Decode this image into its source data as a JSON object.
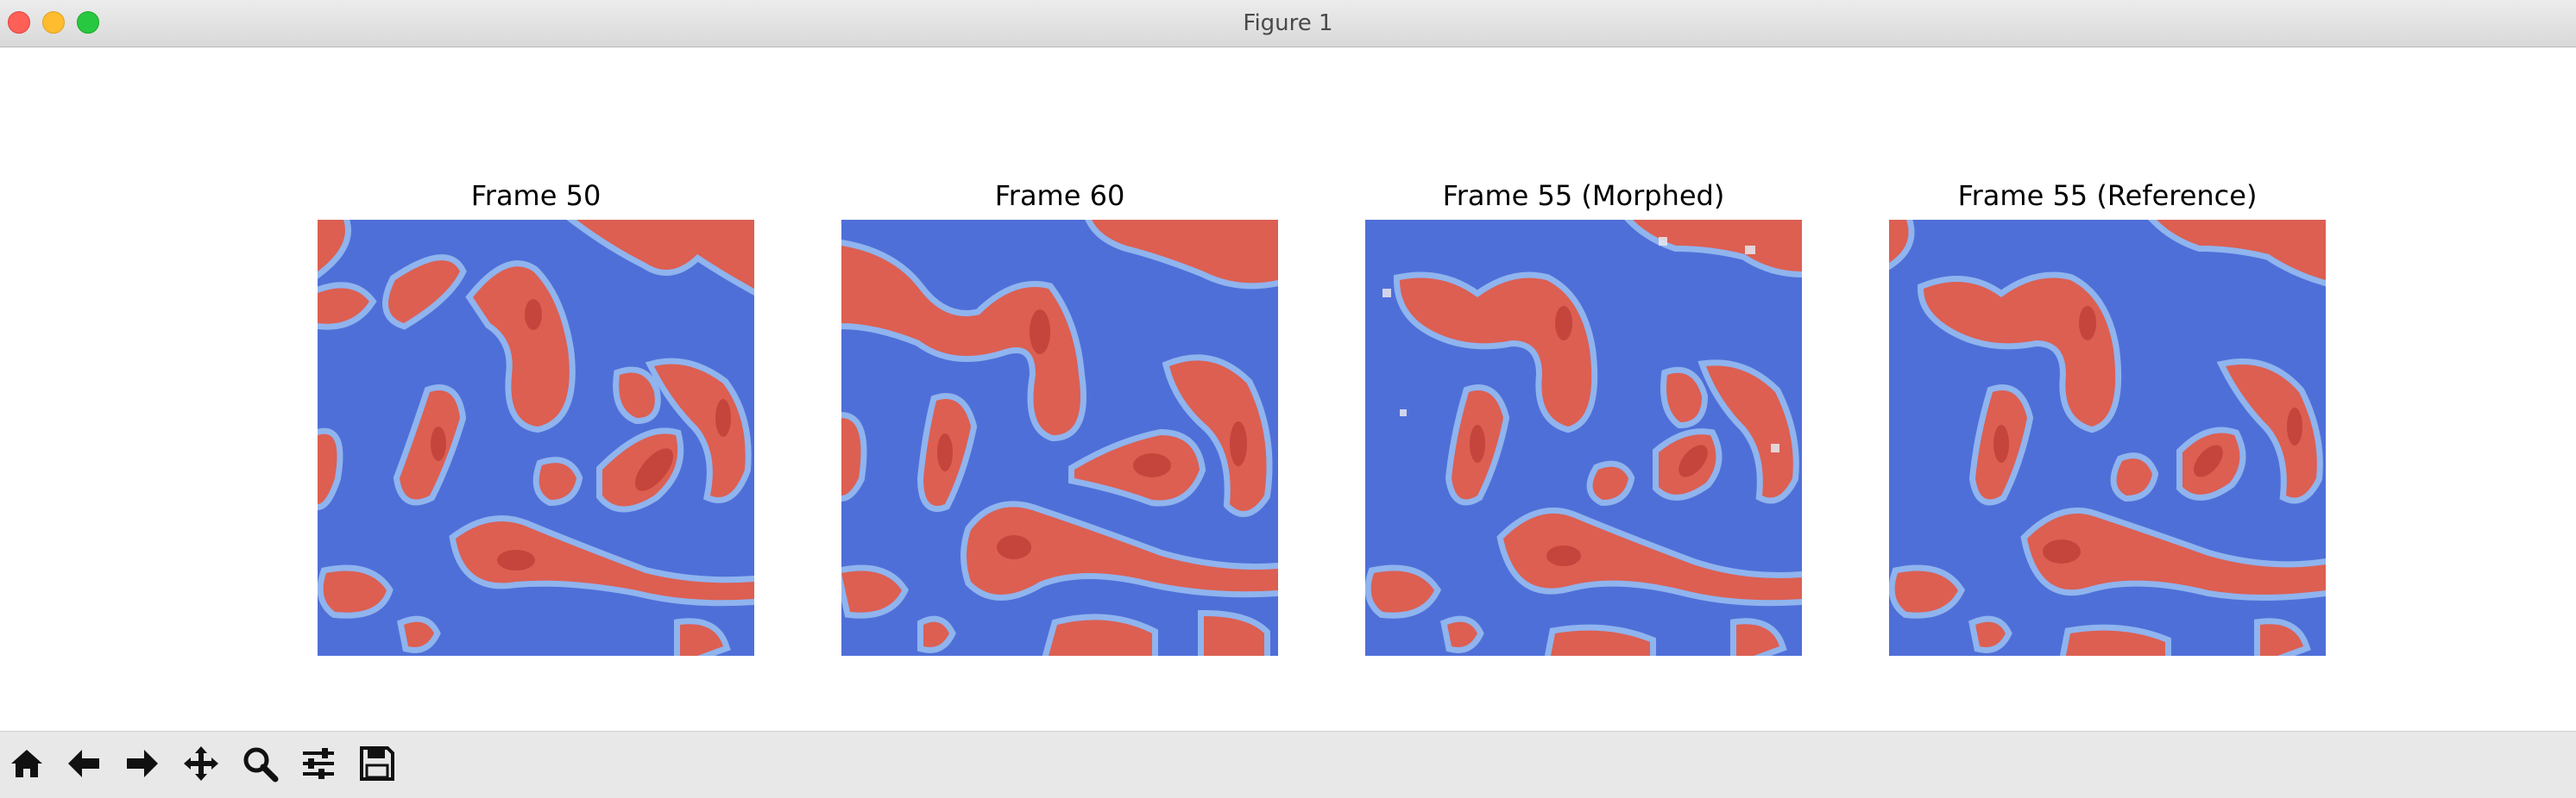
{
  "window": {
    "title": "Figure 1",
    "controls": [
      "close",
      "minimize",
      "maximize"
    ]
  },
  "figure": {
    "panels": [
      {
        "title": "Frame 50",
        "colormap": "coolwarm"
      },
      {
        "title": "Frame 60",
        "colormap": "coolwarm"
      },
      {
        "title": "Frame 55 (Morphed)",
        "colormap": "coolwarm"
      },
      {
        "title": "Frame 55 (Reference)",
        "colormap": "coolwarm"
      }
    ],
    "colors": {
      "blue": "#4f6fd8",
      "light_blue": "#8fb4ee",
      "red": "#dc5f52",
      "dark_red": "#b32f2a"
    }
  },
  "toolbar": {
    "tools": [
      {
        "name": "home",
        "icon": "home-icon"
      },
      {
        "name": "back",
        "icon": "arrow-left-icon"
      },
      {
        "name": "forward",
        "icon": "arrow-right-icon"
      },
      {
        "name": "pan",
        "icon": "move-icon"
      },
      {
        "name": "zoom",
        "icon": "magnifier-icon"
      },
      {
        "name": "subplots",
        "icon": "sliders-icon"
      },
      {
        "name": "save",
        "icon": "floppy-disk-icon"
      }
    ]
  }
}
